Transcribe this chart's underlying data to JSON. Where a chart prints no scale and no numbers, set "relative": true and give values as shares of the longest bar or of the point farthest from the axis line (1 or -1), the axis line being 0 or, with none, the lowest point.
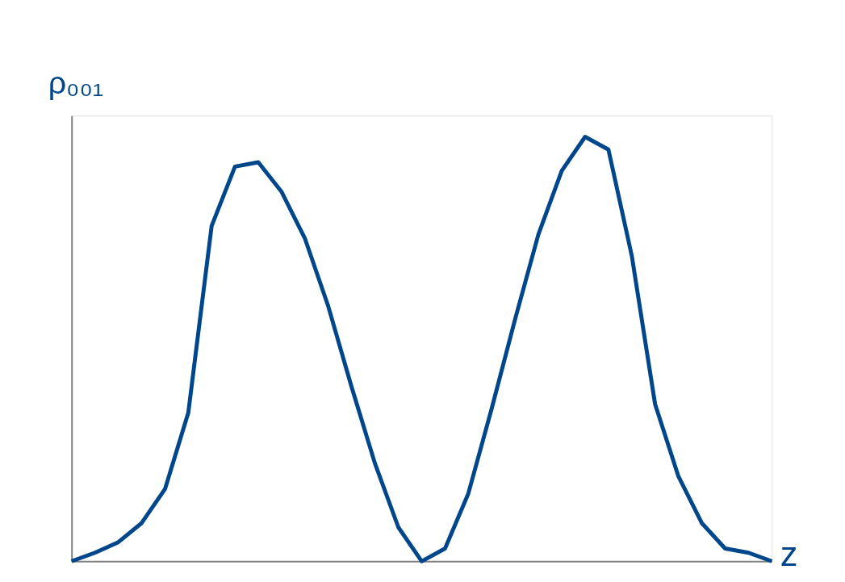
{
  "chart_data": {
    "type": "line",
    "xlabel": "z",
    "ylabel": "ρ₀₀₁",
    "relative": true,
    "color": "#00468b",
    "categories": [
      null,
      null,
      null,
      null,
      null,
      null,
      null,
      null,
      null,
      null,
      null,
      null,
      null,
      null,
      null,
      null,
      null,
      null,
      null,
      null,
      null,
      null,
      null,
      null,
      null,
      null,
      null,
      null,
      null,
      null,
      null
    ],
    "values": [
      0,
      0.02,
      0.045,
      0.09,
      0.17,
      0.35,
      0.79,
      0.93,
      0.94,
      0.87,
      0.76,
      0.6,
      0.41,
      0.23,
      0.08,
      0,
      0.03,
      0.16,
      0.36,
      0.57,
      0.77,
      0.92,
      1,
      0.97,
      0.72,
      0.37,
      0.2,
      0.09,
      0.03,
      0.02,
      0
    ]
  }
}
